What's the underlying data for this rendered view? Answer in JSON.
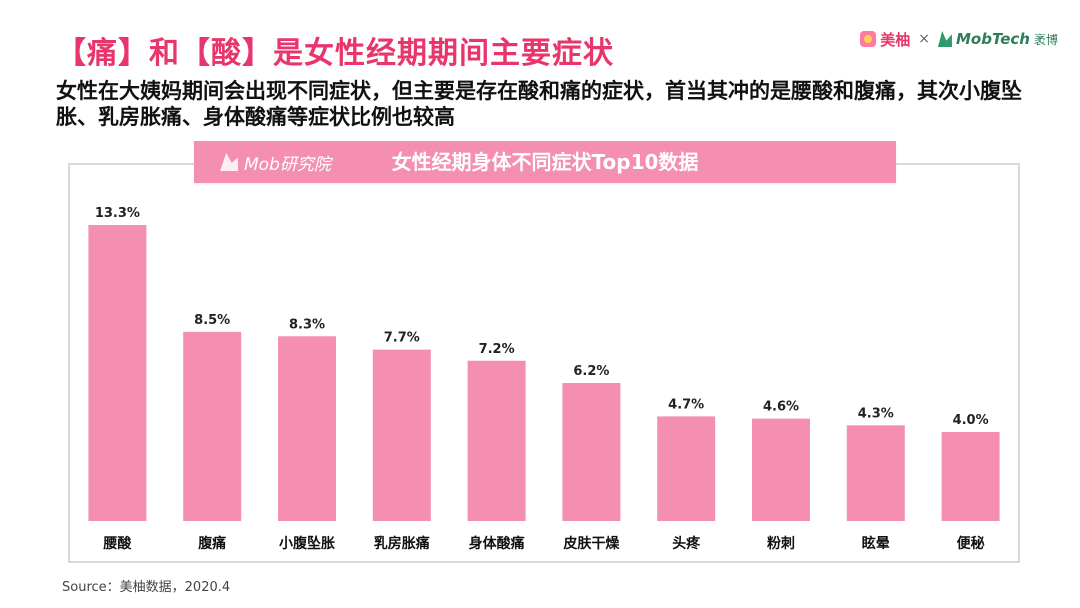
{
  "header": {
    "title": "【痛】和【酸】是女性经期期间主要症状",
    "subtitle": "女性在大姨妈期间会出现不同症状，但主要是存在酸和痛的症状，首当其冲的是腰酸和腹痛，其次小腹坠胀、乳房胀痛、身体酸痛等症状比例也较高",
    "logo_left": "美柚",
    "logo_sep": "×",
    "logo_right": "MobTech",
    "logo_right_cn": "袤博"
  },
  "banner": {
    "brand": "Mob研究院"
  },
  "chart_data": {
    "type": "bar",
    "title": "女性经期身体不同症状Top10数据",
    "categories": [
      "腰酸",
      "腹痛",
      "小腹坠胀",
      "乳房胀痛",
      "身体酸痛",
      "皮肤干燥",
      "头疼",
      "粉刺",
      "眩晕",
      "便秘"
    ],
    "values": [
      13.3,
      8.5,
      8.3,
      7.7,
      7.2,
      6.2,
      4.7,
      4.6,
      4.3,
      4.0
    ],
    "value_labels": [
      "13.3%",
      "8.5%",
      "8.3%",
      "7.7%",
      "7.2%",
      "6.2%",
      "4.7%",
      "4.6%",
      "4.3%",
      "4.0%"
    ],
    "ylim": [
      0,
      13.3
    ],
    "bar_color": "#f48fb1",
    "grid": false,
    "legend": "none"
  },
  "footer": {
    "source": "Source：美柚数据，2020.4"
  }
}
